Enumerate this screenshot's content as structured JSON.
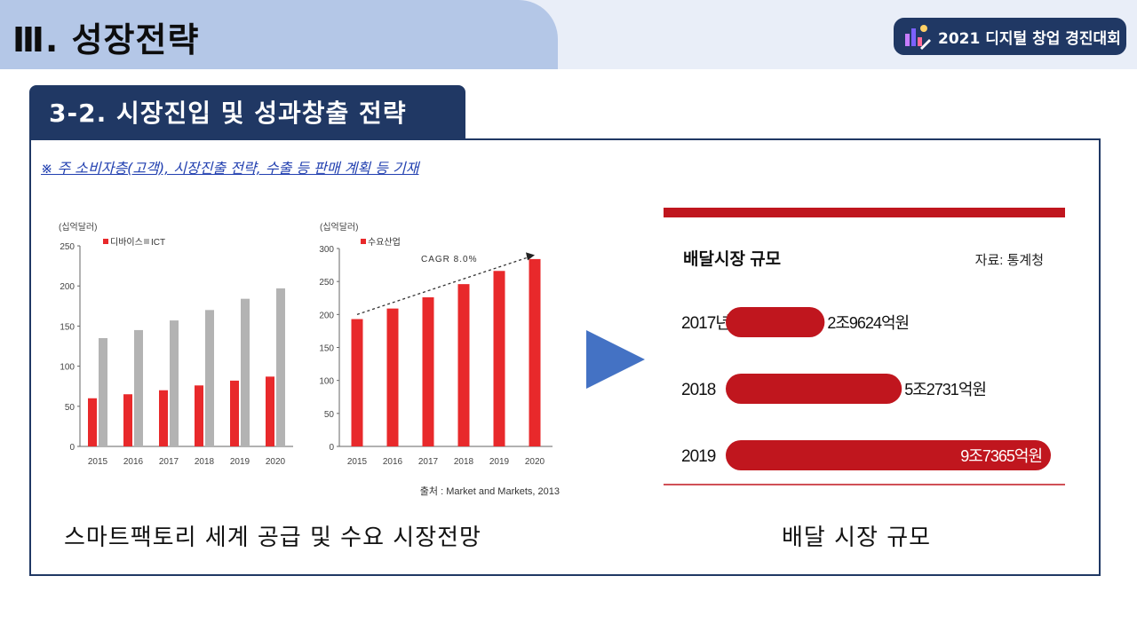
{
  "header": {
    "page_title": "Ⅲ. 성장전략",
    "badge_label": "2021 디지털 창업 경진대회",
    "section_title": "3-2. 시장진입 및 성과창출 전략",
    "note": "※ 주 소비자층(고객), 시장진출 전략, 수출 등 판매 계획 등 기재"
  },
  "captions": {
    "left": "스마트팩토리 세계 공급 및 수요 시장전망",
    "right": "배달 시장 규모"
  },
  "colors": {
    "primary_navy": "#203864",
    "title_tab": "#b4c7e7",
    "red_bar": "#e8292b",
    "gray_bar": "#b3b3b3",
    "delivery_red": "#c0161e",
    "arrow_blue": "#4472c4"
  },
  "chart_data": [
    {
      "type": "bar",
      "ylabel": "(십억달러)",
      "categories": [
        "2015",
        "2016",
        "2017",
        "2018",
        "2019",
        "2020"
      ],
      "yticks": [
        "0",
        "50",
        "100",
        "150",
        "200",
        "250"
      ],
      "ylim": [
        0,
        250
      ],
      "legend_position": "top-left",
      "series": [
        {
          "name": "디바이스",
          "values": [
            60,
            65,
            70,
            76,
            82,
            87
          ]
        },
        {
          "name": "ICT",
          "values": [
            135,
            145,
            157,
            170,
            184,
            197
          ]
        }
      ]
    },
    {
      "type": "bar",
      "ylabel": "(십억달러)",
      "categories": [
        "2015",
        "2016",
        "2017",
        "2018",
        "2019",
        "2020"
      ],
      "yticks": [
        "0",
        "50",
        "100",
        "150",
        "200",
        "250",
        "300"
      ],
      "ylim": [
        0,
        300
      ],
      "legend_position": "top-left",
      "annotation": "CAGR 8.0%",
      "trend": [
        200,
        290
      ],
      "series": [
        {
          "name": "수요산업",
          "values": [
            193,
            209,
            226,
            246,
            266,
            284
          ]
        }
      ],
      "source": "출처 : Market and Markets, 2013"
    },
    {
      "type": "bar",
      "orientation": "horizontal",
      "title": "배달시장 규모",
      "source": "자료: 통계청",
      "categories": [
        "2017년",
        "2018",
        "2019"
      ],
      "values": [
        29624,
        52731,
        97365
      ],
      "value_labels": [
        "2조9624억원",
        "5조2731억원",
        "9조7365억원"
      ],
      "xlim": [
        0,
        97365
      ]
    }
  ]
}
